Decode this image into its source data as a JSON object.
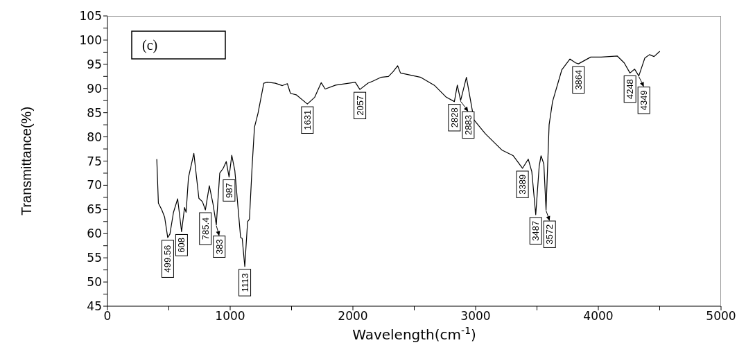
{
  "chart_data": {
    "type": "line",
    "xlabel": "Wavelength(cm$^{-1}$)",
    "ylabel": "Transmittance(%)",
    "xlim": [
      0,
      5000
    ],
    "ylim": [
      45,
      105
    ],
    "xticks": [
      0,
      {
        "value": 500,
        "label": null
      },
      1000,
      {
        "value": 1500,
        "label": null
      },
      2000,
      {
        "value": 2500,
        "label": null
      },
      3000,
      {
        "value": 3500,
        "label": null
      },
      4000,
      {
        "value": 4500,
        "label": null
      },
      5000
    ],
    "yticks": [
      45,
      {
        "value": 47.5,
        "label": null
      },
      50,
      {
        "value": 52.5,
        "label": null
      },
      55,
      {
        "value": 57.5,
        "label": null
      },
      60,
      {
        "value": 62.5,
        "label": null
      },
      65,
      {
        "value": 67.5,
        "label": null
      },
      70,
      {
        "value": 72.5,
        "label": null
      },
      75,
      {
        "value": 77.5,
        "label": null
      },
      80,
      {
        "value": 82.5,
        "label": null
      },
      85,
      {
        "value": 87.5,
        "label": null
      },
      90,
      {
        "value": 92.5,
        "label": null
      },
      95,
      {
        "value": 97.5,
        "label": null
      },
      100,
      {
        "value": 102.5,
        "label": null
      },
      105
    ],
    "grid": false,
    "legend": false,
    "marker": "none",
    "line_style": "solid",
    "series": [
      {
        "color": "#000000",
        "x": [
          402,
          415,
          443,
          466,
          491,
          509,
          538,
          572,
          604,
          628,
          641,
          660,
          704,
          745,
          774,
          798,
          830,
          859,
          887,
          915,
          943,
          968,
          991,
          1013,
          1038,
          1085,
          1098,
          1119,
          1142,
          1157,
          1179,
          1198,
          1227,
          1274,
          1302,
          1368,
          1425,
          1466,
          1491,
          1538,
          1629,
          1689,
          1742,
          1774,
          1859,
          2019,
          2057,
          2123,
          2161,
          2227,
          2290,
          2328,
          2365,
          2388,
          2554,
          2667,
          2761,
          2827,
          2851,
          2878,
          2925,
          2987,
          3081,
          3213,
          3307,
          3382,
          3429,
          3458,
          3490,
          3518,
          3533,
          3556,
          3574,
          3599,
          3627,
          3703,
          3769,
          3815,
          3838,
          3938,
          4023,
          4155,
          4211,
          4258,
          4296,
          4330,
          4379,
          4417,
          4454,
          4501
        ],
        "values": [
          75.4,
          66.3,
          64.9,
          63.4,
          59.2,
          59.9,
          64.4,
          67.2,
          60.4,
          65.4,
          64.4,
          71.6,
          76.6,
          67.3,
          66.6,
          64.9,
          69.9,
          66.3,
          61.8,
          72.5,
          73.5,
          74.9,
          71.7,
          76.2,
          73.0,
          59.2,
          59.0,
          53.2,
          62.5,
          63.0,
          74.0,
          82.0,
          84.9,
          91.1,
          91.3,
          91.1,
          90.6,
          91.0,
          89.0,
          88.7,
          86.8,
          88.2,
          91.2,
          89.9,
          90.7,
          91.3,
          89.8,
          91.1,
          91.5,
          92.3,
          92.5,
          93.5,
          94.7,
          93.2,
          92.3,
          90.6,
          88.2,
          87.3,
          90.7,
          87.5,
          92.3,
          83.5,
          80.6,
          77.3,
          76.1,
          73.5,
          75.4,
          72.8,
          63.9,
          73.9,
          76.1,
          74.4,
          64.9,
          82.5,
          87.3,
          93.9,
          96.1,
          95.3,
          95.1,
          96.5,
          96.5,
          96.7,
          95.3,
          93.2,
          94.0,
          92.6,
          96.3,
          97.0,
          96.6,
          97.7
        ]
      }
    ],
    "annotations": [
      "(c)",
      {
        "text": "499.56",
        "x": 491,
        "y": 59.2
      },
      {
        "text": "608",
        "x": 604,
        "y": 60.4
      },
      {
        "text": "785.4",
        "x": 798,
        "y": 64.9
      },
      {
        "text": "383",
        "x": 887,
        "y": 61.8
      },
      {
        "text": "987",
        "x": 991,
        "y": 71.7
      },
      {
        "text": "1113",
        "x": 1119,
        "y": 53.2
      },
      {
        "text": "1631",
        "x": 1629,
        "y": 86.8
      },
      {
        "text": "2057",
        "x": 2057,
        "y": 89.8
      },
      {
        "text": "2828",
        "x": 2827,
        "y": 87.3
      },
      {
        "text": "2883",
        "x": 2878,
        "y": 87.5
      },
      {
        "text": "3389",
        "x": 3382,
        "y": 73.5
      },
      {
        "text": "3487",
        "x": 3490,
        "y": 63.9
      },
      {
        "text": "3572",
        "x": 3574,
        "y": 64.9
      },
      {
        "text": "3864",
        "x": 3838,
        "y": 95.1
      },
      {
        "text": "4248",
        "x": 4258,
        "y": 93.2
      },
      {
        "text": "4349",
        "x": 4330,
        "y": 92.6
      }
    ]
  }
}
